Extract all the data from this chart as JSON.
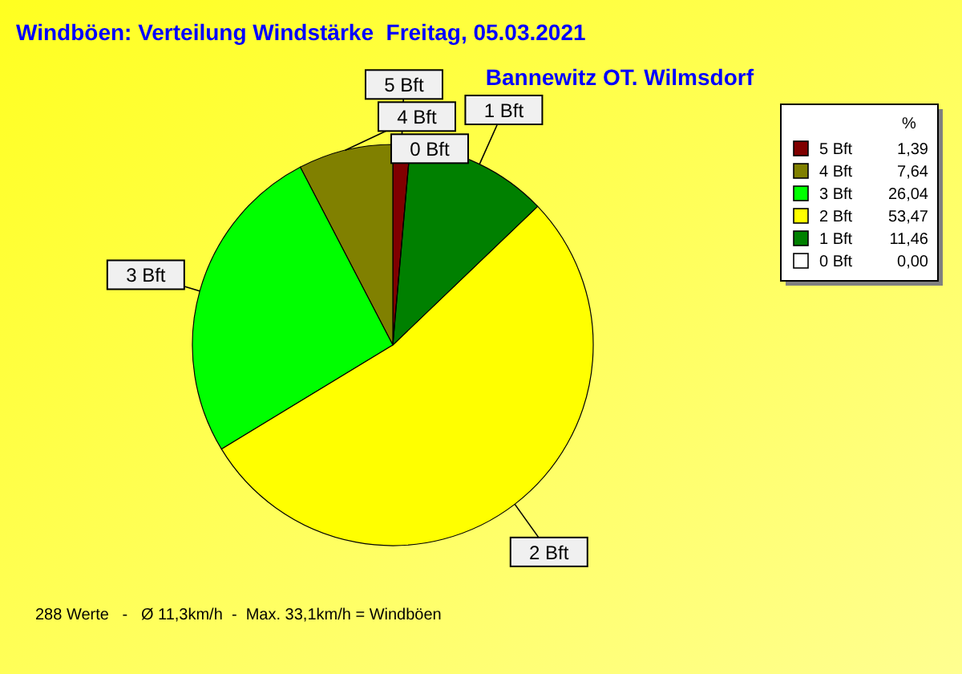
{
  "chart_data": {
    "type": "pie",
    "title": "Windböen: Verteilung Windstärke  Freitag, 05.03.2021",
    "subtitle": "Bannewitz OT. Wilmsdorf",
    "categories": [
      "5 Bft",
      "4 Bft",
      "3 Bft",
      "2 Bft",
      "1 Bft",
      "0 Bft"
    ],
    "values": [
      1.39,
      7.64,
      26.04,
      53.47,
      11.46,
      0
    ],
    "value_labels": [
      "1,39",
      "7,64",
      "26,04",
      "53,47",
      "11,46",
      "0,00"
    ],
    "colors": [
      "#800000",
      "#808000",
      "#00ff00",
      "#ffff00",
      "#008000",
      "#ffffff"
    ],
    "legend": "top right",
    "legend_title": "%",
    "annotations": [
      "288 Werte   -   Ø 11,3km/h  -  Max. 33,1km/h = Windböen"
    ]
  }
}
